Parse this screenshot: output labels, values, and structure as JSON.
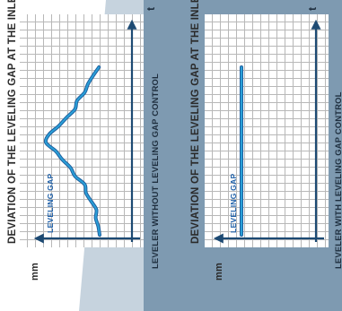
{
  "colors": {
    "page_bg": "#ffffff",
    "slate_dark": "#7e9ab1",
    "slate_light": "#c6d3de",
    "axis": "#1d4a73",
    "curve_main": "#2aa0d8",
    "curve_shadow": "#1f5f9e",
    "grid": "#b8b8b8"
  },
  "chart_data": [
    {
      "type": "line",
      "title": "",
      "ylabel": "DEVIATION OF THE LEVELING GAP AT THE INLET",
      "unit_label": "mm",
      "time_label": "t",
      "series_label": "LEVELING GAP",
      "caption": "LEVELER WITHOUT LEVELING GAP CONTROL",
      "xlim": [
        0,
        1
      ],
      "ylim": [
        0,
        1
      ],
      "series": [
        {
          "x": [
            0.0,
            0.05,
            0.1,
            0.15,
            0.2,
            0.25,
            0.3,
            0.35,
            0.4,
            0.45,
            0.5,
            0.55,
            0.6,
            0.65,
            0.7,
            0.75,
            0.8,
            0.85,
            0.9,
            0.95,
            1.0
          ],
          "y": [
            0.93,
            0.91,
            0.87,
            0.88,
            0.8,
            0.72,
            0.7,
            0.55,
            0.48,
            0.35,
            0.25,
            0.1,
            0.15,
            0.3,
            0.42,
            0.55,
            0.58,
            0.7,
            0.75,
            0.83,
            0.92
          ]
        }
      ]
    },
    {
      "type": "line",
      "title": "",
      "ylabel": "DEVIATION OF THE LEVELING GAP AT THE INLET",
      "unit_label": "mm",
      "time_label": "t",
      "series_label": "LEVELING GAP",
      "caption": "LEVELER WITH LEVELING GAP CONTROL",
      "xlim": [
        0,
        1
      ],
      "ylim": [
        0,
        1
      ],
      "series": [
        {
          "x": [
            0.0,
            0.25,
            0.5,
            0.75,
            1.0
          ],
          "y": [
            0.7,
            0.7,
            0.7,
            0.7,
            0.7
          ]
        }
      ]
    }
  ]
}
